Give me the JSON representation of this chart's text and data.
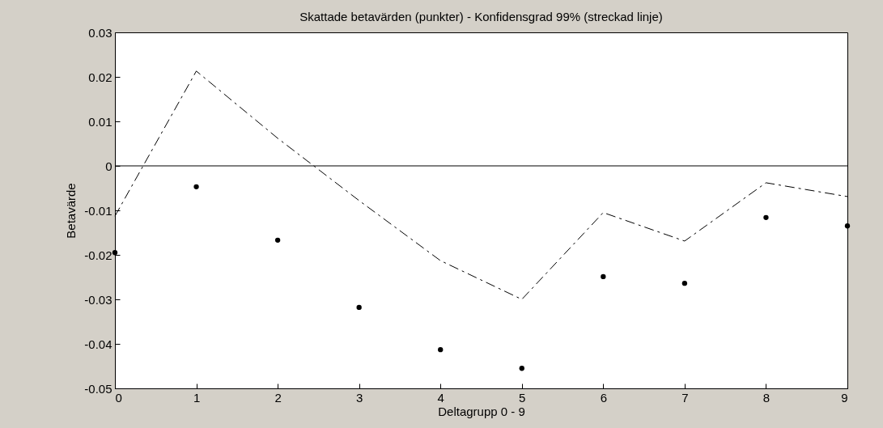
{
  "chart_data": {
    "type": "scatter",
    "title": "Skattade betavärden (punkter) - Konfidensgrad 99% (streckad linje)",
    "xlabel": "Deltagrupp 0 - 9",
    "ylabel": "Betavärde",
    "x": [
      0,
      1,
      2,
      3,
      4,
      5,
      6,
      7,
      8,
      9
    ],
    "series": [
      {
        "color": "#000000",
        "marker": "circle",
        "values": [
          -0.0195,
          -0.0047,
          -0.0167,
          -0.0318,
          -0.0413,
          -0.0455,
          -0.0249,
          -0.0264,
          -0.0116,
          -0.0135
        ]
      },
      {
        "type": "line",
        "color": "#000000",
        "line_style": "dashed",
        "values": [
          -0.0113,
          0.0213,
          0.0062,
          -0.0078,
          -0.0213,
          -0.03,
          -0.0105,
          -0.0169,
          -0.0038,
          -0.0069
        ]
      }
    ],
    "xlim": [
      0,
      9
    ],
    "xticks": [
      0,
      1,
      2,
      3,
      4,
      5,
      6,
      7,
      8,
      9
    ],
    "ylim": [
      -0.05,
      0.03
    ],
    "yticks": [
      -0.05,
      -0.04,
      -0.03,
      -0.02,
      -0.01,
      0,
      0.01,
      0.02,
      0.03
    ],
    "ref_lines": [
      {
        "axis": "y",
        "value": 0,
        "color": "#000000"
      }
    ],
    "grid": false
  }
}
